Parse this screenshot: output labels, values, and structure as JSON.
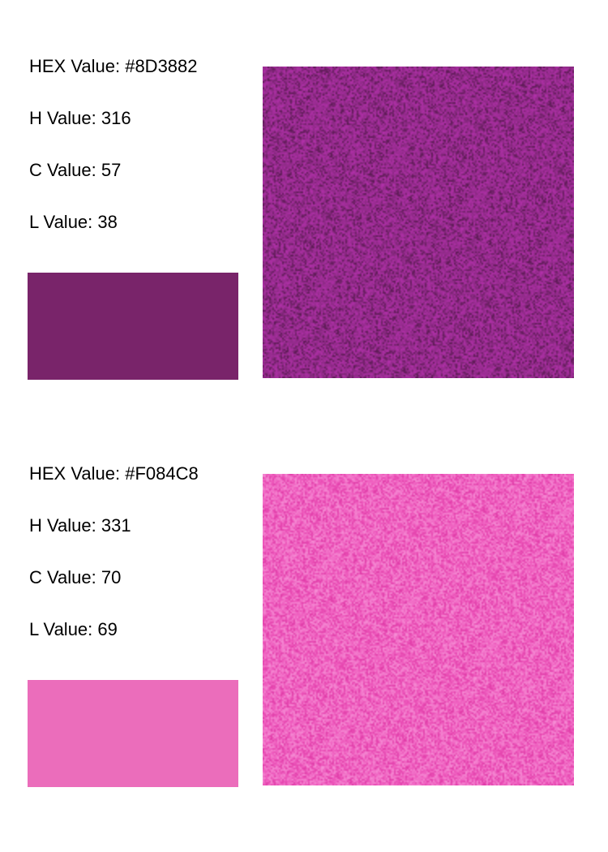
{
  "panels": [
    {
      "hex_label": "HEX Value: #8D3882",
      "h_label": "H Value: 316",
      "c_label": "C Value: 57",
      "l_label": "L Value: 38",
      "swatch_color": "#79246A",
      "texture_base_color": "#8D2A85",
      "texture_dark_color": "#5A1A52",
      "texture_light_color": "#B030A8"
    },
    {
      "hex_label": "HEX Value: #F084C8",
      "h_label": "H Value: 331",
      "c_label": "C Value: 70",
      "l_label": "L Value: 69",
      "swatch_color": "#EB6DBB",
      "texture_base_color": "#EE58BC",
      "texture_dark_color": "#E03CA8",
      "texture_light_color": "#F58CD4"
    }
  ]
}
